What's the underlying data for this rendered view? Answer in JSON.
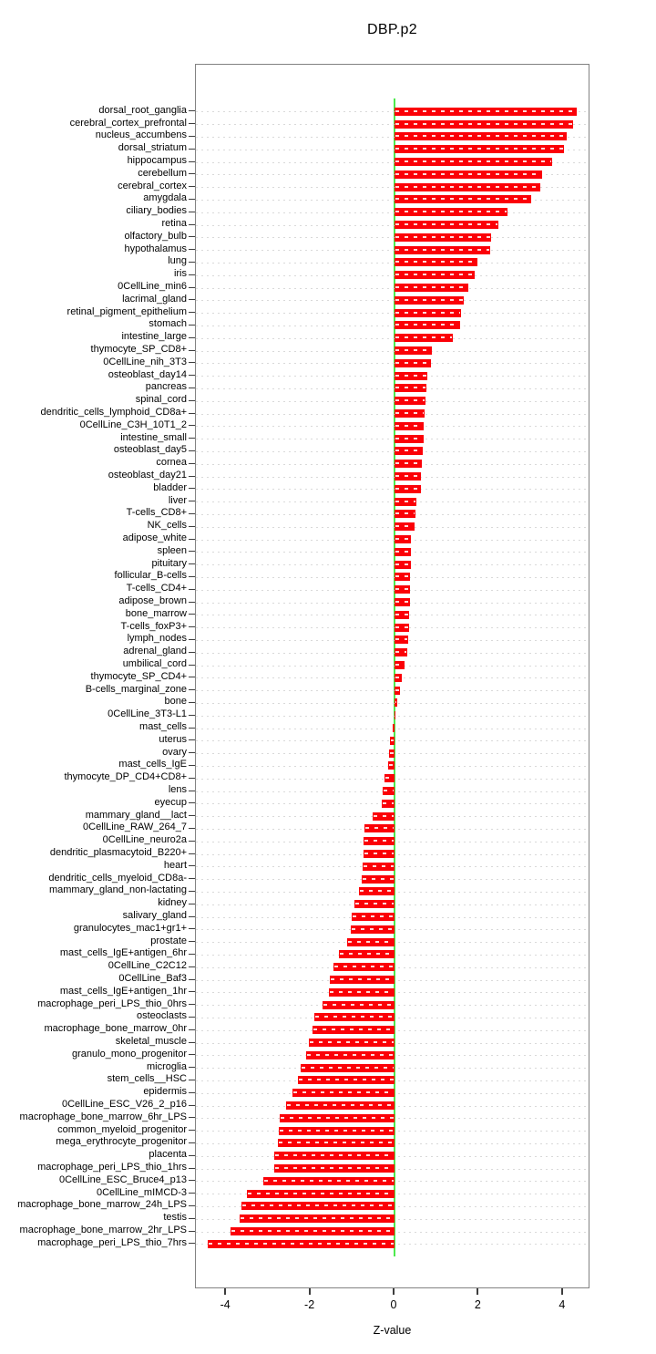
{
  "title": "DBP.p2",
  "chart_data": {
    "type": "bar",
    "orientation": "horizontal",
    "title": "DBP.p2",
    "xlabel": "Z-value",
    "xlim": [
      -4.7,
      4.65
    ],
    "xticks": [
      -4,
      -2,
      0,
      2,
      4
    ],
    "grid": "dotted-horizontal-per-row",
    "legend": "none",
    "bar_color": "#fb0007",
    "zero_line_color": "#4dea4d",
    "box_color": "#828282",
    "categories": [
      "dorsal_root_ganglia",
      "cerebral_cortex_prefrontal",
      "nucleus_accumbens",
      "dorsal_striatum",
      "hippocampus",
      "cerebellum",
      "cerebral_cortex",
      "amygdala",
      "ciliary_bodies",
      "retina",
      "olfactory_bulb",
      "hypothalamus",
      "lung",
      "iris",
      "0CellLine_min6",
      "lacrimal_gland",
      "retinal_pigment_epithelium",
      "stomach",
      "intestine_large",
      "thymocyte_SP_CD8+",
      "0CellLine_nih_3T3",
      "osteoblast_day14",
      "pancreas",
      "spinal_cord",
      "dendritic_cells_lymphoid_CD8a+",
      "0CellLine_C3H_10T1_2",
      "intestine_small",
      "osteoblast_day5",
      "cornea",
      "osteoblast_day21",
      "bladder",
      "liver",
      "T-cells_CD8+",
      "NK_cells",
      "adipose_white",
      "spleen",
      "pituitary",
      "follicular_B-cells",
      "T-cells_CD4+",
      "adipose_brown",
      "bone_marrow",
      "T-cells_foxP3+",
      "lymph_nodes",
      "adrenal_gland",
      "umbilical_cord",
      "thymocyte_SP_CD4+",
      "B-cells_marginal_zone",
      "bone",
      "0CellLine_3T3-L1",
      "mast_cells",
      "uterus",
      "ovary",
      "mast_cells_IgE",
      "thymocyte_DP_CD4+CD8+",
      "lens",
      "eyecup",
      "mammary_gland__lact",
      "0CellLine_RAW_264_7",
      "0CellLine_neuro2a",
      "dendritic_plasmacytoid_B220+",
      "heart",
      "dendritic_cells_myeloid_CD8a-",
      "mammary_gland_non-lactating",
      "kidney",
      "salivary_gland",
      "granulocytes_mac1+gr1+",
      "prostate",
      "mast_cells_IgE+antigen_6hr",
      "0CellLine_C2C12",
      "0CellLine_Baf3",
      "mast_cells_IgE+antigen_1hr",
      "macrophage_peri_LPS_thio_0hrs",
      "osteoclasts",
      "macrophage_bone_marrow_0hr",
      "skeletal_muscle",
      "granulo_mono_progenitor",
      "microglia",
      "stem_cells__HSC",
      "epidermis",
      "0CellLine_ESC_V26_2_p16",
      "macrophage_bone_marrow_6hr_LPS",
      "common_myeloid_progenitor",
      "mega_erythrocyte_progenitor",
      "placenta",
      "macrophage_peri_LPS_thio_1hrs",
      "0CellLine_ESC_Bruce4_p13",
      "0CellLine_mIMCD-3",
      "macrophage_bone_marrow_24h_LPS",
      "testis",
      "macrophage_bone_marrow_2hr_LPS",
      "macrophage_peri_LPS_thio_7hrs"
    ],
    "values": [
      4.33,
      4.25,
      4.1,
      4.03,
      3.74,
      3.51,
      3.47,
      3.24,
      2.68,
      2.46,
      2.29,
      2.27,
      1.96,
      1.91,
      1.75,
      1.64,
      1.58,
      1.55,
      1.39,
      0.89,
      0.86,
      0.79,
      0.75,
      0.74,
      0.71,
      0.7,
      0.7,
      0.67,
      0.64,
      0.63,
      0.63,
      0.51,
      0.49,
      0.48,
      0.4,
      0.39,
      0.38,
      0.37,
      0.36,
      0.36,
      0.35,
      0.34,
      0.32,
      0.3,
      0.23,
      0.18,
      0.12,
      0.06,
      0.02,
      -0.04,
      -0.1,
      -0.12,
      -0.15,
      -0.24,
      -0.28,
      -0.3,
      -0.51,
      -0.71,
      -0.73,
      -0.74,
      -0.75,
      -0.79,
      -0.85,
      -0.95,
      -1.02,
      -1.03,
      -1.13,
      -1.31,
      -1.45,
      -1.54,
      -1.56,
      -1.72,
      -1.9,
      -1.94,
      -2.03,
      -2.09,
      -2.22,
      -2.3,
      -2.43,
      -2.57,
      -2.72,
      -2.74,
      -2.76,
      -2.86,
      -2.85,
      -3.12,
      -3.51,
      -3.64,
      -3.68,
      -3.9,
      -4.44
    ]
  }
}
